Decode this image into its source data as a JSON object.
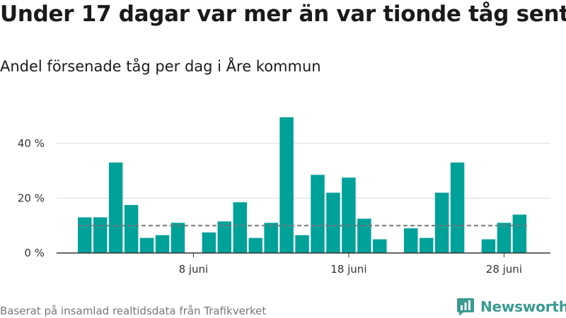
{
  "header": {
    "title": "Under 17 dagar var mer än var tionde tåg sent",
    "subtitle": "Andel försenade tåg per dag i Åre kommun"
  },
  "footer": {
    "source": "Baserat på insamlad realtidsdata från Trafikverket",
    "brand": "Newsworthy",
    "brand_icon": "bar-chart-logo-icon"
  },
  "colors": {
    "bar": "#00a199",
    "reference_line": "#777777",
    "brand": "#3a9b92"
  },
  "chart_data": {
    "type": "bar",
    "title": "Under 17 dagar var mer än var tionde tåg sent",
    "subtitle": "Andel försenade tåg per dag i Åre kommun",
    "xlabel": "",
    "ylabel": "",
    "unit": "%",
    "categories": [
      "1 juni",
      "2 juni",
      "3 juni",
      "4 juni",
      "5 juni",
      "6 juni",
      "7 juni",
      "8 juni",
      "9 juni",
      "10 juni",
      "11 juni",
      "12 juni",
      "13 juni",
      "14 juni",
      "15 juni",
      "16 juni",
      "17 juni",
      "18 juni",
      "19 juni",
      "20 juni",
      "21 juni",
      "22 juni",
      "23 juni",
      "24 juni",
      "25 juni",
      "26 juni",
      "27 juni",
      "28 juni",
      "29 juni",
      "30 juni"
    ],
    "values": [
      13,
      13,
      33,
      17.5,
      5.5,
      6.5,
      11,
      null,
      7.5,
      11.5,
      18.5,
      5.5,
      11,
      49.5,
      6.5,
      28.5,
      22,
      27.5,
      12.5,
      5,
      null,
      9,
      5.5,
      22,
      33,
      null,
      5,
      11,
      14,
      null
    ],
    "reference_line": 10,
    "ylim": [
      0,
      50
    ],
    "yticks": [
      0,
      20,
      40
    ],
    "ytick_labels": [
      "0 %",
      "20 %",
      "40 %"
    ],
    "xticks": [
      "8 juni",
      "18 juni",
      "28 juni"
    ],
    "grid": true,
    "legend": "none"
  }
}
